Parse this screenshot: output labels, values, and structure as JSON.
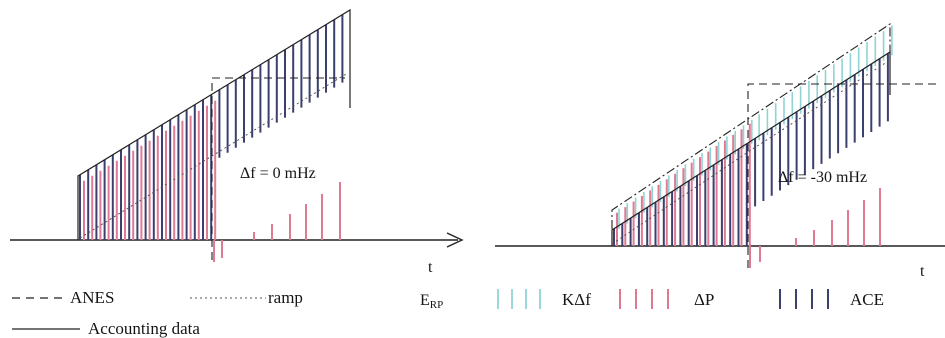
{
  "colors": {
    "ace": "#3a3f6e",
    "delta_p": "#e07a92",
    "k_delta_f": "#8fd3d6",
    "line": "#222222"
  },
  "left_panel": {
    "annotation": "Δf =  0 mHz",
    "axis_label": "t"
  },
  "right_panel": {
    "annotation": "Δf =  -30 mHz",
    "axis_label": "t"
  },
  "legend": {
    "anes_label": "ANES",
    "ramp_label": "ramp",
    "accounting_label": "Accounting data",
    "erp_label": "E",
    "erp_subscript": "RP",
    "kdf_label": "KΔf",
    "dp_label": "ΔP",
    "ace_label": "ACE"
  }
}
